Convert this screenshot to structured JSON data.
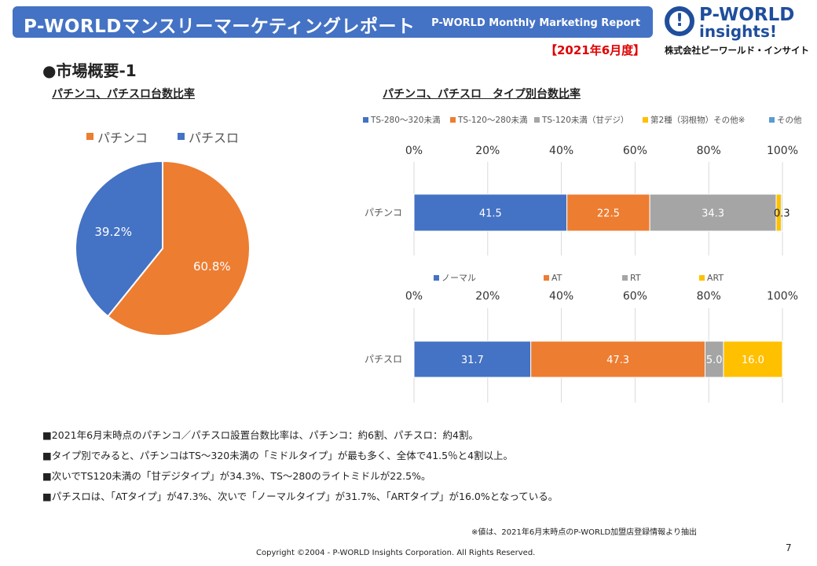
{
  "header": {
    "title": "P-WORLDマンスリーマーケティングレポート",
    "title_en": "P-WORLD Monthly Marketing Report",
    "period": "【2021年6月度】"
  },
  "logo": {
    "line1": "P-WORLD",
    "line2": "insights!",
    "company": "株式会社ピーワールド・インサイト"
  },
  "section_title": "●市場概要-1",
  "colors": {
    "blue": "#4472c4",
    "orange": "#ed7d31",
    "gray": "#a5a5a5",
    "yellow": "#ffc000",
    "lightblue": "#5b9bd5"
  },
  "chart_data": [
    {
      "type": "pie",
      "title": "パチンコ、パチスロ台数比率",
      "labels": [
        "パチンコ",
        "パチスロ"
      ],
      "values": [
        60.8,
        39.2
      ],
      "value_labels": [
        "60.8%",
        "39.2%"
      ],
      "legend_position": "top"
    },
    {
      "type": "bar",
      "orientation": "horizontal-stacked-100",
      "title": "パチンコ、パチスロ　タイプ別台数比率",
      "categories": [
        "パチンコ"
      ],
      "x_ticks": [
        "0%",
        "20%",
        "40%",
        "60%",
        "80%",
        "100%"
      ],
      "series": [
        {
          "name": "TS-280～320未満",
          "values": [
            41.5
          ],
          "label": "41.5"
        },
        {
          "name": "TS-120～280未満",
          "values": [
            22.5
          ],
          "label": "22.5"
        },
        {
          "name": "TS-120未満（甘デジ）",
          "values": [
            34.3
          ],
          "label": "34.3"
        },
        {
          "name": "第2種（羽根物）その他※",
          "values": [
            1.4
          ],
          "label": ""
        },
        {
          "name": "その他",
          "values": [
            0.3
          ],
          "label": "0.3"
        }
      ],
      "legend_position": "top"
    },
    {
      "type": "bar",
      "orientation": "horizontal-stacked-100",
      "categories": [
        "パチスロ"
      ],
      "x_ticks": [
        "0%",
        "20%",
        "40%",
        "60%",
        "80%",
        "100%"
      ],
      "series": [
        {
          "name": "ノーマル",
          "values": [
            31.7
          ],
          "label": "31.7"
        },
        {
          "name": "AT",
          "values": [
            47.3
          ],
          "label": "47.3"
        },
        {
          "name": "RT",
          "values": [
            5.0
          ],
          "label": "5.0"
        },
        {
          "name": "ART",
          "values": [
            16.0
          ],
          "label": "16.0"
        }
      ],
      "legend_position": "top"
    }
  ],
  "notes": [
    "■2021年6月末時点のパチンコ／パチスロ設置台数比率は、パチンコ：約6割、パチスロ：約4割。",
    "■タイプ別でみると、パチンコはTS～320未満の「ミドルタイプ」が最も多く、全体で41.5％と4割以上。",
    "■次いでTS120未満の「甘デジタイプ」が34.3%、TS～280のライトミドルが22.5%。",
    "■パチスロは、「ATタイプ」が47.3%、次いで「ノーマルタイプ」が31.7%、「ARTタイプ」が16.0%となっている。"
  ],
  "footnote": "※値は、2021年6月末時点のP-WORLD加盟店登録情報より抽出",
  "copyright": "Copyright ©2004 -  P-WORLD Insights Corporation. All Rights Reserved.",
  "page_number": "7"
}
